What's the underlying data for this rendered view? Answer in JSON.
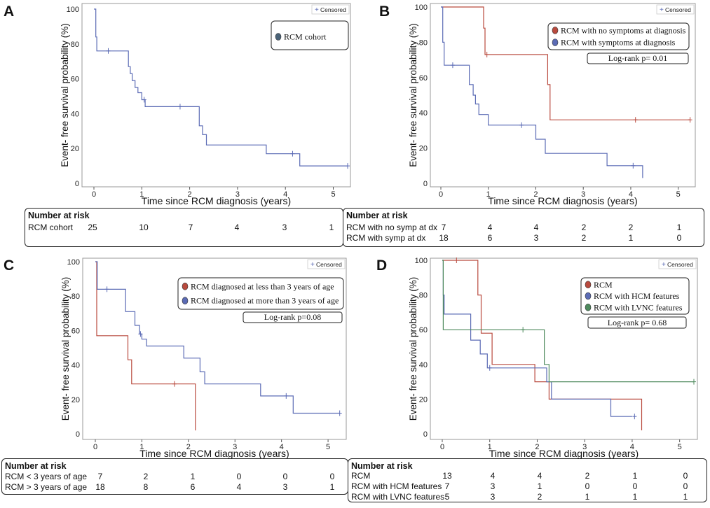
{
  "figure": {
    "censored_label": "Censored",
    "censored_marker": "+"
  },
  "colors": {
    "blue": "#5b6bb5",
    "red": "#b94a3e",
    "green": "#4e8a5d",
    "axis": "#555555",
    "frame": "#999999"
  },
  "chart_data": [
    {
      "type": "line",
      "subtype": "kaplan-meier",
      "panel": "A",
      "xlabel": "Time since RCM diagnosis (years)",
      "ylabel": "Event- free survival probability (%)",
      "xlim": [
        0,
        5.3
      ],
      "ylim": [
        0,
        100
      ],
      "xticks": [
        0,
        1,
        2,
        3,
        4,
        5
      ],
      "yticks": [
        0,
        20,
        40,
        60,
        80,
        100
      ],
      "legend": [
        "RCM cohort"
      ],
      "log_rank": "",
      "series": [
        {
          "name": "RCM cohort",
          "color": "blue",
          "x": [
            0,
            0.04,
            0.04,
            0.06,
            0.06,
            0.72,
            0.72,
            0.76,
            0.76,
            0.8,
            0.8,
            0.86,
            0.86,
            0.92,
            0.92,
            1.0,
            1.0,
            1.07,
            1.07,
            2.2,
            2.2,
            2.27,
            2.27,
            2.35,
            2.35,
            3.6,
            3.6,
            4.3,
            4.3,
            5.3
          ],
          "y": [
            100,
            100,
            84,
            84,
            76,
            76,
            67,
            67,
            63,
            63,
            59,
            59,
            55,
            55,
            52,
            52,
            48,
            48,
            44,
            44,
            33,
            33,
            28,
            28,
            22,
            22,
            17,
            17,
            10,
            10
          ],
          "censored": [
            [
              0.3,
              76
            ],
            [
              1.05,
              48
            ],
            [
              1.8,
              44
            ],
            [
              4.15,
              17
            ],
            [
              5.3,
              10
            ]
          ]
        }
      ]
    },
    {
      "type": "line",
      "subtype": "kaplan-meier",
      "panel": "B",
      "xlabel": "Time since RCM diagnosis (years)",
      "ylabel": "Event- free survival probability (%)",
      "xlim": [
        0,
        5.3
      ],
      "ylim": [
        0,
        100
      ],
      "xticks": [
        0,
        1,
        2,
        3,
        4,
        5
      ],
      "yticks": [
        0,
        20,
        40,
        60,
        80,
        100
      ],
      "legend": [
        "RCM with no symptoms at diagnosis",
        "RCM with symptoms at diagnosis"
      ],
      "log_rank": "Log-rank p= 0.01",
      "series": [
        {
          "name": "RCM with no symptoms at diagnosis",
          "color": "red",
          "x": [
            0,
            0.9,
            0.9,
            0.93,
            0.93,
            2.25,
            2.25,
            2.3,
            2.3,
            5.25
          ],
          "y": [
            100,
            100,
            88,
            88,
            73,
            73,
            56,
            56,
            36,
            36
          ],
          "censored": [
            [
              0.97,
              73
            ],
            [
              4.1,
              36
            ],
            [
              5.25,
              36
            ]
          ]
        },
        {
          "name": "RCM with symptoms at diagnosis",
          "color": "blue",
          "x": [
            0,
            0.04,
            0.04,
            0.07,
            0.07,
            0.6,
            0.6,
            0.68,
            0.68,
            0.73,
            0.73,
            0.8,
            0.8,
            1.0,
            1.0,
            2.0,
            2.0,
            2.2,
            2.2,
            3.5,
            3.5,
            4.25,
            4.25
          ],
          "y": [
            100,
            100,
            80,
            80,
            67,
            67,
            56,
            56,
            50,
            50,
            45,
            45,
            39,
            39,
            33,
            33,
            25,
            25,
            17,
            17,
            10,
            10,
            3
          ],
          "censored": [
            [
              0.25,
              67
            ],
            [
              1.7,
              33
            ],
            [
              4.05,
              10
            ]
          ]
        }
      ]
    },
    {
      "type": "line",
      "subtype": "kaplan-meier",
      "panel": "C",
      "xlabel": "Time since RCM diagnosis (years)",
      "ylabel": "Event- free survival probability (%)",
      "xlim": [
        0,
        5.3
      ],
      "ylim": [
        0,
        100
      ],
      "xticks": [
        0,
        1,
        2,
        3,
        4,
        5
      ],
      "yticks": [
        0,
        20,
        40,
        60,
        80,
        100
      ],
      "legend": [
        "RCM diagnosed at less than 3 years of age",
        "RCM diagnosed at more than 3 years of age"
      ],
      "log_rank": "Log-rank p=0.08",
      "series": [
        {
          "name": "RCM diagnosed at less than 3 years of age",
          "color": "red",
          "x": [
            0,
            0.03,
            0.03,
            0.7,
            0.7,
            0.78,
            0.78,
            2.15,
            2.15
          ],
          "y": [
            100,
            100,
            57,
            57,
            43,
            43,
            29,
            29,
            2
          ],
          "censored": [
            [
              1.7,
              29
            ]
          ]
        },
        {
          "name": "RCM diagnosed at more than 3 years of age",
          "color": "blue",
          "x": [
            0,
            0.04,
            0.04,
            0.65,
            0.65,
            0.85,
            0.85,
            0.95,
            0.95,
            1.0,
            1.0,
            1.1,
            1.1,
            1.9,
            1.9,
            2.25,
            2.25,
            2.35,
            2.35,
            3.55,
            3.55,
            4.25,
            4.25,
            5.25
          ],
          "y": [
            100,
            100,
            84,
            84,
            71,
            71,
            63,
            63,
            58,
            58,
            55,
            55,
            51,
            51,
            44,
            44,
            36,
            36,
            29,
            29,
            22,
            22,
            12,
            12
          ],
          "censored": [
            [
              0.25,
              84
            ],
            [
              0.97,
              58
            ],
            [
              4.1,
              22
            ],
            [
              5.25,
              12
            ]
          ]
        }
      ]
    },
    {
      "type": "line",
      "subtype": "kaplan-meier",
      "panel": "D",
      "xlabel": "Time since RCM diagnosis (years)",
      "ylabel": "Event- free survival probability (%)",
      "xlim": [
        0,
        5.3
      ],
      "ylim": [
        0,
        100
      ],
      "xticks": [
        0,
        1,
        2,
        3,
        4,
        5
      ],
      "yticks": [
        0,
        20,
        40,
        60,
        80,
        100
      ],
      "legend": [
        "RCM",
        "RCM with HCM features",
        "RCM with LVNC features"
      ],
      "log_rank": "Log-rank p= 0.68",
      "series": [
        {
          "name": "RCM",
          "color": "red",
          "x": [
            0,
            0.75,
            0.75,
            0.82,
            0.82,
            1.05,
            1.05,
            1.95,
            1.95,
            2.25,
            2.25,
            4.2,
            4.2
          ],
          "y": [
            100,
            100,
            80,
            80,
            58,
            58,
            40,
            40,
            30,
            30,
            20,
            20,
            2
          ],
          "censored": [
            [
              0.3,
              100
            ]
          ]
        },
        {
          "name": "RCM with HCM features",
          "color": "blue",
          "x": [
            0,
            0.02,
            0.02,
            0.04,
            0.04,
            0.6,
            0.6,
            0.8,
            0.8,
            0.95,
            0.95,
            2.2,
            2.2,
            2.3,
            2.3,
            3.55,
            3.55,
            4.0
          ],
          "y": [
            100,
            100,
            80,
            80,
            69,
            69,
            54,
            54,
            46,
            46,
            38,
            38,
            30,
            30,
            20,
            20,
            10,
            10
          ],
          "censored": [
            [
              1.0,
              38
            ],
            [
              4.05,
              10
            ]
          ]
        },
        {
          "name": "RCM with LVNC features",
          "color": "green",
          "x": [
            0,
            0.02,
            0.02,
            2.15,
            2.15,
            2.25,
            2.25,
            5.3
          ],
          "y": [
            100,
            100,
            60,
            60,
            40,
            40,
            30,
            30
          ],
          "censored": [
            [
              1.7,
              60
            ],
            [
              5.3,
              30
            ]
          ]
        }
      ]
    }
  ],
  "risk_tables": {
    "a": {
      "title": "Number at risk",
      "rows": [
        {
          "label": "RCM cohort",
          "values": [
            "25",
            "10",
            "7",
            "4",
            "3",
            "1"
          ]
        }
      ]
    },
    "b": {
      "title": "Number at risk",
      "rows": [
        {
          "label": "RCM with no symp at dx",
          "values": [
            "7",
            "4",
            "4",
            "2",
            "2",
            "1"
          ]
        },
        {
          "label": "RCM with symp at dx",
          "values": [
            "18",
            "6",
            "3",
            "2",
            "1",
            "0"
          ]
        }
      ]
    },
    "c": {
      "title": "Number at risk",
      "rows": [
        {
          "label": "RCM < 3 years of age",
          "values": [
            "7",
            "2",
            "1",
            "0",
            "0",
            "0"
          ]
        },
        {
          "label": "RCM > 3 years of age",
          "values": [
            "18",
            "8",
            "6",
            "4",
            "3",
            "1"
          ]
        }
      ]
    },
    "d": {
      "title": "Number at risk",
      "rows": [
        {
          "label": "RCM",
          "values": [
            "13",
            "4",
            "4",
            "2",
            "1",
            "0"
          ]
        },
        {
          "label": "RCM with HCM features",
          "values": [
            "7",
            "3",
            "1",
            "0",
            "0",
            "0"
          ]
        },
        {
          "label": "RCM with LVNC features",
          "values": [
            "5",
            "3",
            "2",
            "1",
            "1",
            "1"
          ]
        }
      ]
    }
  }
}
